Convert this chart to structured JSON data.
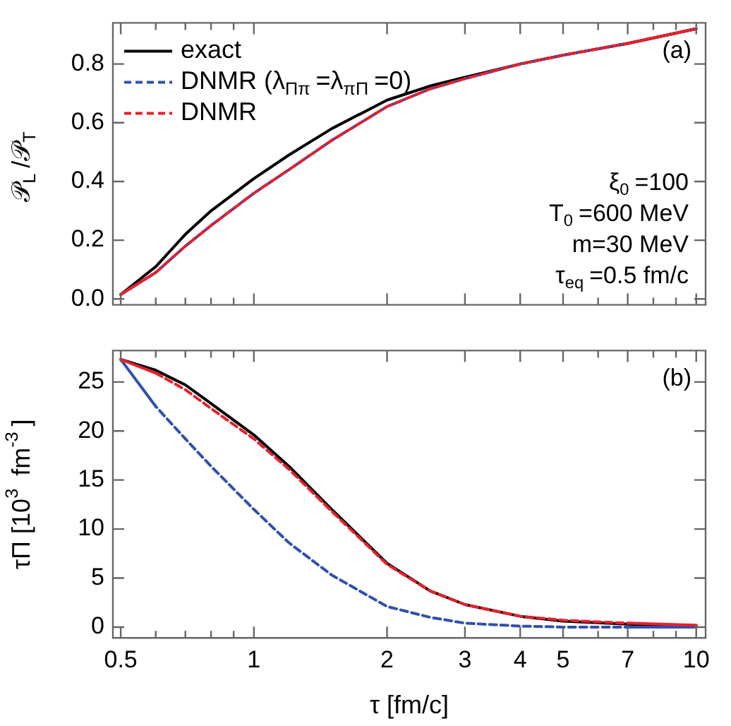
{
  "chart_data": [
    {
      "type": "line",
      "log": "x",
      "ylabel": "𝒫$_{L}$/𝒫$_{T}$",
      "legend": "top left",
      "marker": "none",
      "tick_labels": "y",
      "grid": false,
      "annotations": [
        "(a)",
        "ξ$_{0}$=100",
        "T$_{0}$=600 MeV",
        "m=30 MeV",
        "τ$_{eq}$=0.5 fm/c"
      ],
      "x": [
        0.5,
        0.6,
        0.7,
        0.8,
        1,
        1.2,
        1.5,
        2,
        2.5,
        3,
        4,
        5,
        7,
        10
      ],
      "xlim": [
        0.48,
        10.5
      ],
      "xticks": [
        0.5,
        {
          "value": 0.6,
          "label": null
        },
        {
          "value": 0.7,
          "label": null
        },
        {
          "value": 0.8,
          "label": null
        },
        {
          "value": 0.9,
          "label": null
        },
        1,
        2,
        3,
        4,
        5,
        {
          "value": 6,
          "label": null
        },
        7,
        {
          "value": 8,
          "label": null
        },
        {
          "value": 9,
          "label": null
        },
        10
      ],
      "ylim": [
        -0.02,
        0.94
      ],
      "yticks": [
        {
          "value": 0,
          "label": "0.0"
        },
        {
          "value": 0.2,
          "label": "0.2"
        },
        {
          "value": 0.4,
          "label": "0.4"
        },
        {
          "value": 0.6,
          "label": "0.6"
        },
        {
          "value": 0.8,
          "label": "0.8"
        }
      ],
      "series": [
        {
          "name": "exact",
          "color": "#000000",
          "line_style": "solid",
          "values": [
            0.015,
            0.11,
            0.22,
            0.3,
            0.41,
            0.49,
            0.58,
            0.677,
            0.725,
            0.755,
            0.8,
            0.83,
            0.87,
            0.92
          ]
        },
        {
          "name": "DNMR (λ$_{Ππ}$=λ$_{πΠ}$=0)",
          "color": "#3050b0",
          "line_style": "dashed",
          "values": [
            0.015,
            0.09,
            0.18,
            0.25,
            0.36,
            0.44,
            0.54,
            0.655,
            0.715,
            0.75,
            0.8,
            0.83,
            0.87,
            0.92
          ]
        },
        {
          "name": "DNMR",
          "color": "#e8202a",
          "line_style": "dashed",
          "values": [
            0.015,
            0.09,
            0.18,
            0.25,
            0.36,
            0.44,
            0.54,
            0.655,
            0.715,
            0.75,
            0.8,
            0.83,
            0.87,
            0.92
          ]
        }
      ]
    },
    {
      "type": "line",
      "log": "x",
      "xlabel": "τ [fm/c]",
      "ylabel": "τΠ [10$^{3}$ fm$^{-3}$]",
      "marker": "none",
      "grid": false,
      "annotations": [
        "(b)"
      ],
      "x": [
        0.5,
        0.6,
        0.7,
        0.8,
        1,
        1.2,
        1.5,
        2,
        2.5,
        3,
        4,
        5,
        7,
        10
      ],
      "xlim": [
        0.48,
        10.5
      ],
      "xticks": [
        0.5,
        {
          "value": 0.6,
          "label": null
        },
        {
          "value": 0.7,
          "label": null
        },
        {
          "value": 0.8,
          "label": null
        },
        {
          "value": 0.9,
          "label": null
        },
        1,
        2,
        3,
        4,
        5,
        {
          "value": 6,
          "label": null
        },
        7,
        {
          "value": 8,
          "label": null
        },
        {
          "value": 9,
          "label": null
        },
        10
      ],
      "ylim": [
        -1.1,
        28.2
      ],
      "yticks": [
        0,
        5,
        10,
        15,
        20,
        25
      ],
      "series": [
        {
          "color": "#000000",
          "line_style": "solid",
          "values": [
            27.3,
            26.2,
            24.7,
            22.8,
            19.6,
            16.4,
            12.0,
            6.5,
            3.7,
            2.3,
            1.1,
            0.6,
            0.3,
            0.1
          ]
        },
        {
          "color": "#3050b0",
          "line_style": "dashed",
          "values": [
            27.3,
            22.5,
            19.2,
            16.4,
            12.0,
            8.6,
            5.3,
            2.1,
            1.0,
            0.4,
            0.1,
            0,
            0,
            0
          ]
        },
        {
          "color": "#e8202a",
          "line_style": "dashed",
          "values": [
            27.3,
            25.9,
            24.2,
            22.3,
            19.2,
            16.1,
            11.8,
            6.4,
            3.7,
            2.3,
            1.1,
            0.7,
            0.4,
            0.2
          ]
        }
      ]
    }
  ]
}
